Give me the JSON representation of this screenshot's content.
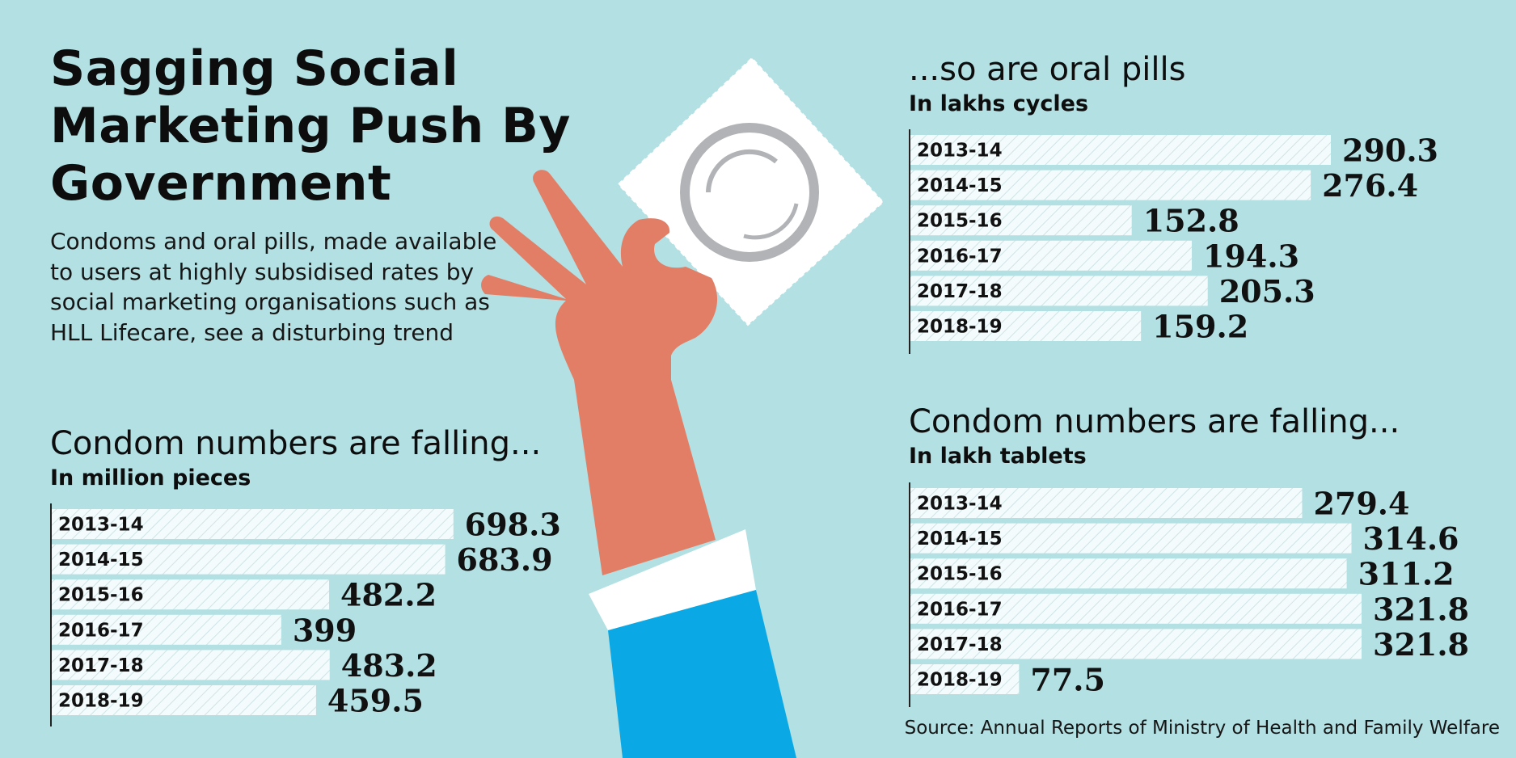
{
  "headline": "Sagging Social Marketing Push By Government",
  "intro": "Condoms and oral pills, made available to users at highly subsidised rates by social marketing organisations such as HLL Lifecare, see a disturbing trend",
  "source": "Source: Annual Reports of Ministry of Health and Family Welfare",
  "illustration": {
    "icon": "hand-holding-condom-packet-icon"
  },
  "colors": {
    "background": "#b3e0e3",
    "bar_fill": "#f4fbfc",
    "bar_hatch": "#cfe3e6",
    "axis": "#222222",
    "skin": "#e27e66",
    "sleeve": "#0aa9e6",
    "cuff": "#ffffff",
    "packet": "#ffffff",
    "ring": "#b1b3b6"
  },
  "chart_data": [
    {
      "type": "bar",
      "orientation": "horizontal",
      "title": "Condom numbers are falling...",
      "unit": "In million pieces",
      "categories": [
        "2013-14",
        "2014-15",
        "2015-16",
        "2016-17",
        "2017-18",
        "2018-19"
      ],
      "values": [
        698.3,
        683.9,
        482.2,
        399,
        483.2,
        459.5
      ],
      "value_labels": [
        "698.3",
        "683.9",
        "482.2",
        "399",
        "483.2",
        "459.5"
      ],
      "xlim": [
        0,
        700
      ]
    },
    {
      "type": "bar",
      "orientation": "horizontal",
      "title": "...so are oral pills",
      "unit": "In lakhs cycles",
      "categories": [
        "2013-14",
        "2014-15",
        "2015-16",
        "2016-17",
        "2017-18",
        "2018-19"
      ],
      "values": [
        290.3,
        276.4,
        152.8,
        194.3,
        205.3,
        159.2
      ],
      "value_labels": [
        "290.3",
        "276.4",
        "152.8",
        "194.3",
        "205.3",
        "159.2"
      ],
      "xlim": [
        0,
        290.3
      ]
    },
    {
      "type": "bar",
      "orientation": "horizontal",
      "title": "Condom numbers are falling...",
      "unit": "In lakh tablets",
      "categories": [
        "2013-14",
        "2014-15",
        "2015-16",
        "2016-17",
        "2017-18",
        "2018-19"
      ],
      "values": [
        279.4,
        314.6,
        311.2,
        321.8,
        321.8,
        77.5
      ],
      "value_labels": [
        "279.4",
        "314.6",
        "311.2",
        "321.8",
        "321.8",
        "77.5"
      ],
      "xlim": [
        0,
        321.8
      ]
    }
  ]
}
